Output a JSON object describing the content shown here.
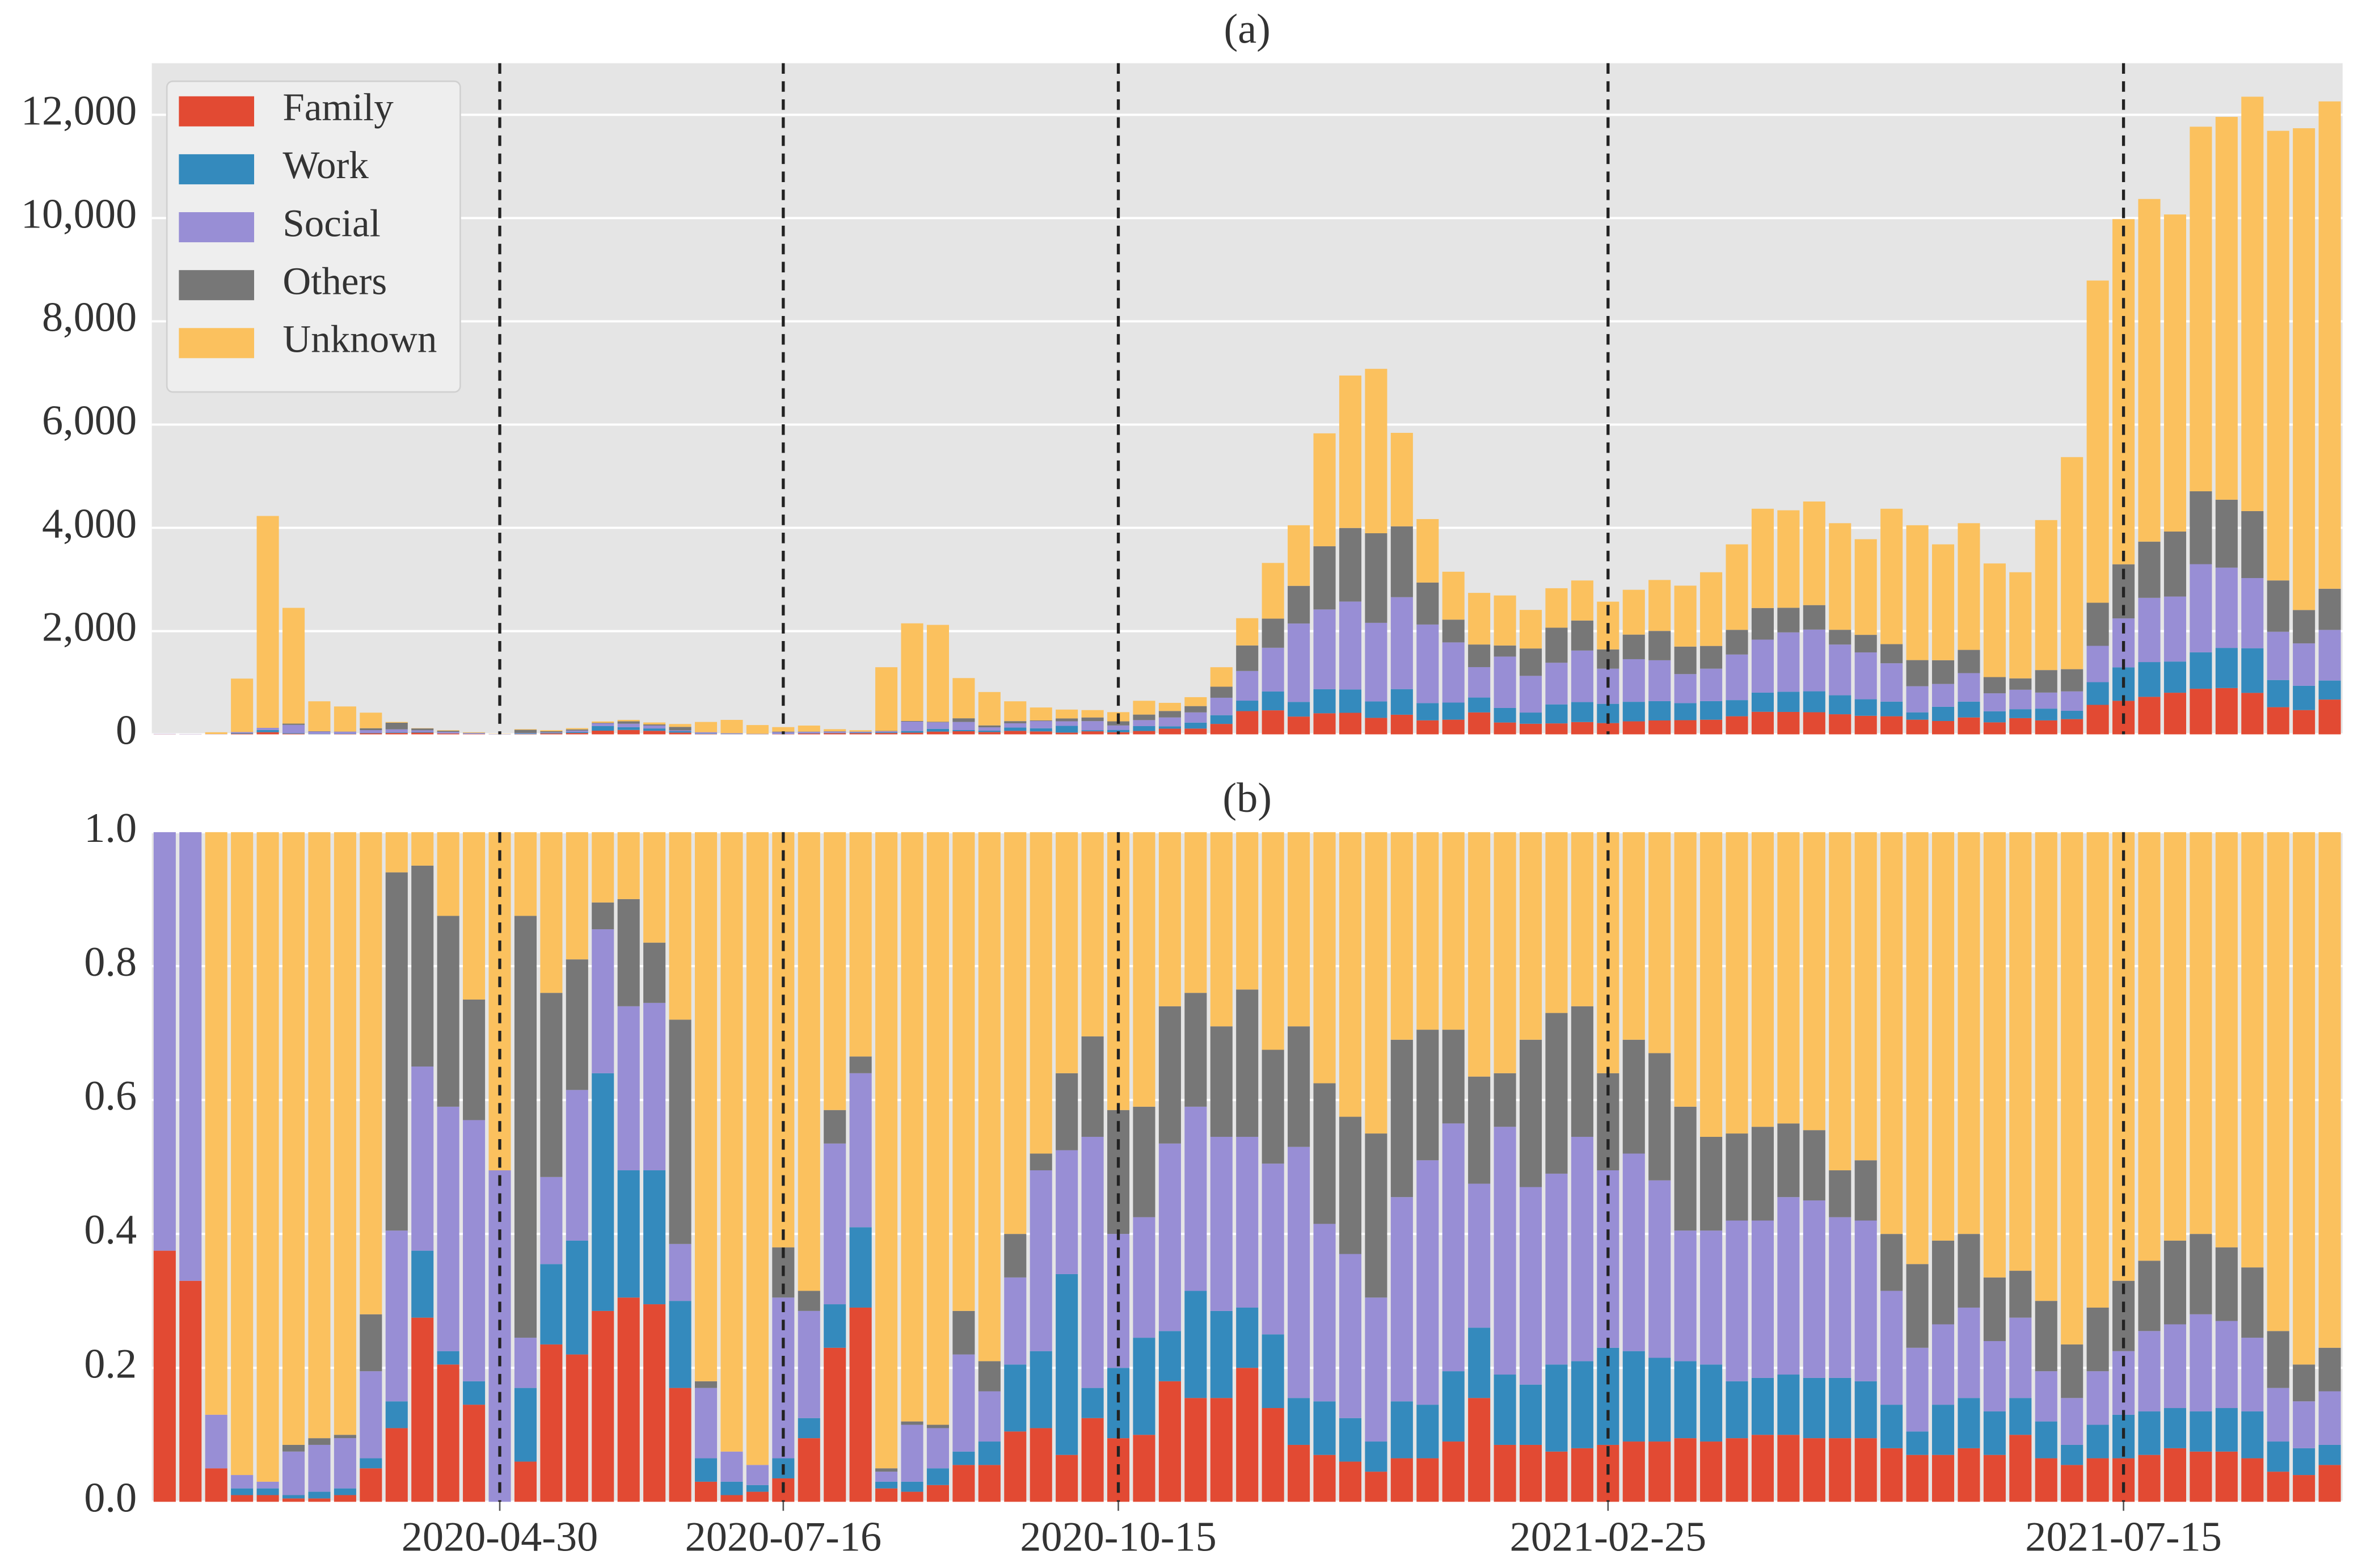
{
  "chart_data": [
    {
      "type": "bar",
      "stacked": true,
      "title": "(a)",
      "legend": "upper left",
      "grid": true,
      "categories": [
        null,
        null,
        null,
        null,
        null,
        null,
        null,
        null,
        null,
        null,
        null,
        null,
        null,
        null,
        null,
        null,
        null,
        null,
        null,
        null,
        null,
        null,
        null,
        null,
        null,
        null,
        null,
        null,
        null,
        null,
        null,
        null,
        null,
        null,
        null,
        null,
        null,
        null,
        null,
        null,
        null,
        null,
        null,
        null,
        null,
        null,
        null,
        null,
        null,
        null,
        null,
        null,
        null,
        null,
        null,
        null,
        null,
        null,
        null,
        null,
        null,
        null,
        null,
        null,
        null,
        null,
        null,
        null,
        null,
        null,
        null,
        null,
        null,
        null,
        null,
        null,
        null,
        null,
        null,
        null,
        null,
        null,
        null,
        null,
        null
      ],
      "reference_lines": [
        13,
        24,
        37,
        56,
        76
      ],
      "ylim": [
        0,
        13000
      ],
      "yticks": [
        0,
        {
          "value": 2000,
          "label": "2,000"
        },
        {
          "value": 4000,
          "label": "4,000"
        },
        {
          "value": 6000,
          "label": "6,000"
        },
        {
          "value": 8000,
          "label": "8,000"
        },
        {
          "value": 10000,
          "label": "10,000"
        },
        {
          "value": 12000,
          "label": "12,000"
        }
      ],
      "series": [
        {
          "name": "Family",
          "color": "#e24a33",
          "values": [
            3,
            2,
            2,
            11,
            42,
            12,
            3,
            5,
            21,
            26,
            33,
            16,
            6,
            0,
            6,
            19,
            26,
            71,
            85,
            68,
            34,
            7,
            3,
            3,
            5,
            16,
            23,
            23,
            26,
            32,
            53,
            60,
            45,
            67,
            57,
            34,
            59,
            41,
            65,
            110,
            112,
            202,
            450,
            465,
            344,
            408,
            417,
            319,
            380,
            271,
            284,
            425,
            229,
            205,
            212,
            238,
            218,
            252,
            269,
            274,
            283,
            350,
            437,
            434,
            428,
            389,
            359,
            350,
            284,
            258,
            327,
            232,
            314,
            270,
            295,
            571,
            649,
            726,
            806,
            883,
            897,
            803,
            526,
            470,
            674
          ]
        },
        {
          "name": "Work",
          "color": "#348abd",
          "values": [
            0,
            0,
            0,
            11,
            42,
            12,
            6,
            5,
            6,
            10,
            12,
            2,
            1,
            0,
            11,
            10,
            20,
            89,
            53,
            46,
            26,
            8,
            6,
            2,
            4,
            5,
            7,
            10,
            13,
            32,
            53,
            22,
            29,
            64,
            60,
            130,
            21,
            45,
            94,
            46,
            115,
            169,
            203,
            365,
            284,
            466,
            452,
            319,
            496,
            334,
            331,
            288,
            282,
            217,
            368,
            387,
            373,
            378,
            374,
            331,
            361,
            313,
            371,
            391,
            406,
            368,
            321,
            284,
            142,
            276,
            307,
            215,
            173,
            228,
            161,
            440,
            649,
            674,
            604,
            706,
            777,
            865,
            526,
            470,
            368
          ]
        },
        {
          "name": "Social",
          "color": "#988ed5",
          "values": [
            5,
            4,
            3,
            22,
            42,
            159,
            45,
            41,
            55,
            61,
            33,
            29,
            16,
            5,
            8,
            10,
            27,
            54,
            69,
            57,
            17,
            25,
            13,
            5,
            34,
            27,
            24,
            18,
            20,
            183,
            127,
            158,
            62,
            83,
            140,
            89,
            176,
            86,
            117,
            171,
            198,
            338,
            574,
            847,
            1519,
            1545,
            1703,
            1522,
            1781,
            1522,
            1166,
            589,
            995,
            711,
            807,
            998,
            681,
            826,
            792,
            562,
            628,
            883,
            1027,
            1150,
            1195,
            982,
            907,
            743,
            506,
            442,
            552,
            348,
            377,
            311,
            376,
            703,
            948,
            1244,
            1259,
            1707,
            1555,
            1359,
            935,
            822,
            981
          ]
        },
        {
          "name": "Others",
          "color": "#777777",
          "values": [
            0,
            0,
            0,
            0,
            0,
            25,
            6,
            3,
            36,
            128,
            36,
            23,
            7,
            0,
            63,
            22,
            23,
            10,
            45,
            21,
            67,
            2,
            0,
            0,
            10,
            5,
            5,
            2,
            7,
            11,
            11,
            71,
            37,
            42,
            13,
            55,
            71,
            80,
            107,
            125,
            122,
            214,
            495,
            564,
            729,
            1224,
            1425,
            1735,
            1372,
            813,
            441,
            438,
            215,
            530,
            679,
            581,
            373,
            476,
            568,
            533,
            440,
            478,
            612,
            477,
            474,
            286,
            340,
            371,
            506,
            460,
            450,
            314,
            220,
            436,
            430,
            835,
            1048,
            1089,
            1259,
            1412,
            1316,
            1297,
            994,
            646,
            797
          ]
        },
        {
          "name": "Unknown",
          "color": "#fbc15e",
          "values": [
            0,
            0,
            35,
            1036,
            4104,
            2242,
            580,
            486,
            302,
            15,
            6,
            10,
            10,
            5,
            12,
            19,
            24,
            26,
            28,
            38,
            56,
            198,
            258,
            170,
            87,
            117,
            41,
            27,
            1234,
            1892,
            1876,
            779,
            647,
            384,
            250,
            172,
            143,
            178,
            267,
            158,
            173,
            377,
            528,
            1079,
            1174,
            2187,
            2953,
            3185,
            1811,
            1230,
            928,
            1000,
            969,
            747,
            764,
            776,
            925,
            868,
            987,
            1180,
            1428,
            1656,
            1923,
            1888,
            2007,
            2065,
            1853,
            2622,
            2612,
            2244,
            2454,
            2201,
            2056,
            2905,
            4108,
            6241,
            6686,
            6637,
            6142,
            7062,
            7415,
            8027,
            8709,
            9332,
            9440
          ]
        }
      ]
    },
    {
      "type": "bar",
      "stacked": true,
      "title": "(b)",
      "legend": false,
      "grid": true,
      "categories": [
        null,
        null,
        null,
        null,
        null,
        null,
        null,
        null,
        null,
        null,
        null,
        null,
        null,
        "2020-04-30",
        null,
        null,
        null,
        null,
        null,
        null,
        null,
        null,
        null,
        null,
        "2020-07-16",
        null,
        null,
        null,
        null,
        null,
        null,
        null,
        null,
        null,
        null,
        null,
        null,
        "2020-10-15",
        null,
        null,
        null,
        null,
        null,
        null,
        null,
        null,
        null,
        null,
        null,
        null,
        null,
        null,
        null,
        null,
        null,
        null,
        "2021-02-25",
        null,
        null,
        null,
        null,
        null,
        null,
        null,
        null,
        null,
        null,
        null,
        null,
        null,
        null,
        null,
        null,
        null,
        null,
        null,
        "2021-07-15",
        null,
        null,
        null,
        null,
        null,
        null,
        null,
        null
      ],
      "reference_lines": [
        13,
        24,
        37,
        56,
        76
      ],
      "ylim": [
        0,
        1
      ],
      "yticks": [
        {
          "value": 0,
          "label": "0.0"
        },
        {
          "value": 0.2,
          "label": "0.2"
        },
        {
          "value": 0.4,
          "label": "0.4"
        },
        {
          "value": 0.6,
          "label": "0.6"
        },
        {
          "value": 0.8,
          "label": "0.8"
        },
        {
          "value": 1,
          "label": "1.0"
        }
      ],
      "series": [
        {
          "color": "#e24a33",
          "values": [
            0.375,
            0.33,
            0.05,
            0.01,
            0.01,
            0.005,
            0.005,
            0.01,
            0.05,
            0.11,
            0.275,
            0.205,
            0.145,
            0,
            0.06,
            0.235,
            0.22,
            0.285,
            0.305,
            0.295,
            0.17,
            0.03,
            0.01,
            0.015,
            0.035,
            0.095,
            0.23,
            0.29,
            0.02,
            0.015,
            0.025,
            0.055,
            0.055,
            0.105,
            0.11,
            0.07,
            0.125,
            0.095,
            0.1,
            0.18,
            0.155,
            0.155,
            0.2,
            0.14,
            0.085,
            0.07,
            0.06,
            0.045,
            0.065,
            0.065,
            0.09,
            0.155,
            0.085,
            0.085,
            0.075,
            0.08,
            0.085,
            0.09,
            0.09,
            0.095,
            0.09,
            0.095,
            0.1,
            0.1,
            0.095,
            0.095,
            0.095,
            0.08,
            0.07,
            0.07,
            0.08,
            0.07,
            0.1,
            0.065,
            0.055,
            0.065,
            0.065,
            0.07,
            0.08,
            0.075,
            0.075,
            0.065,
            0.045,
            0.04,
            0.055
          ]
        },
        {
          "color": "#348abd",
          "values": [
            0,
            0,
            0,
            0.01,
            0.01,
            0.005,
            0.01,
            0.01,
            0.015,
            0.04,
            0.1,
            0.02,
            0.035,
            0,
            0.11,
            0.12,
            0.17,
            0.355,
            0.19,
            0.2,
            0.13,
            0.035,
            0.02,
            0.01,
            0.03,
            0.03,
            0.065,
            0.12,
            0.01,
            0.015,
            0.025,
            0.02,
            0.035,
            0.1,
            0.115,
            0.27,
            0.045,
            0.105,
            0.145,
            0.075,
            0.16,
            0.13,
            0.09,
            0.11,
            0.07,
            0.08,
            0.065,
            0.045,
            0.085,
            0.08,
            0.105,
            0.105,
            0.105,
            0.09,
            0.13,
            0.13,
            0.145,
            0.135,
            0.125,
            0.115,
            0.115,
            0.085,
            0.085,
            0.09,
            0.09,
            0.09,
            0.085,
            0.065,
            0.035,
            0.075,
            0.075,
            0.065,
            0.055,
            0.055,
            0.03,
            0.05,
            0.065,
            0.065,
            0.06,
            0.06,
            0.065,
            0.07,
            0.045,
            0.04,
            0.03
          ]
        },
        {
          "color": "#988ed5",
          "values": [
            0.625,
            0.67,
            0.08,
            0.02,
            0.01,
            0.065,
            0.07,
            0.075,
            0.13,
            0.255,
            0.275,
            0.365,
            0.39,
            0.495,
            0.075,
            0.13,
            0.225,
            0.215,
            0.245,
            0.25,
            0.085,
            0.105,
            0.045,
            0.03,
            0.24,
            0.16,
            0.24,
            0.23,
            0.015,
            0.085,
            0.06,
            0.145,
            0.075,
            0.13,
            0.27,
            0.185,
            0.375,
            0.2,
            0.18,
            0.28,
            0.275,
            0.26,
            0.255,
            0.255,
            0.375,
            0.265,
            0.245,
            0.215,
            0.305,
            0.365,
            0.37,
            0.215,
            0.37,
            0.295,
            0.285,
            0.335,
            0.265,
            0.295,
            0.265,
            0.195,
            0.2,
            0.24,
            0.235,
            0.265,
            0.265,
            0.24,
            0.24,
            0.17,
            0.125,
            0.12,
            0.135,
            0.105,
            0.12,
            0.075,
            0.07,
            0.08,
            0.095,
            0.12,
            0.125,
            0.145,
            0.13,
            0.11,
            0.08,
            0.07,
            0.08
          ]
        },
        {
          "color": "#777777",
          "values": [
            0,
            0,
            0,
            0,
            0,
            0.01,
            0.01,
            0.005,
            0.085,
            0.535,
            0.3,
            0.285,
            0.18,
            0,
            0.63,
            0.275,
            0.195,
            0.04,
            0.16,
            0.09,
            0.335,
            0.01,
            0,
            0,
            0.075,
            0.03,
            0.05,
            0.025,
            0.005,
            0.005,
            0.005,
            0.065,
            0.045,
            0.065,
            0.025,
            0.115,
            0.15,
            0.185,
            0.165,
            0.205,
            0.17,
            0.165,
            0.22,
            0.17,
            0.18,
            0.21,
            0.205,
            0.245,
            0.235,
            0.195,
            0.14,
            0.16,
            0.08,
            0.22,
            0.24,
            0.195,
            0.145,
            0.17,
            0.19,
            0.185,
            0.14,
            0.13,
            0.14,
            0.11,
            0.105,
            0.07,
            0.09,
            0.085,
            0.125,
            0.125,
            0.11,
            0.095,
            0.07,
            0.105,
            0.08,
            0.095,
            0.105,
            0.105,
            0.125,
            0.12,
            0.11,
            0.105,
            0.085,
            0.055,
            0.065
          ]
        },
        {
          "color": "#fbc15e",
          "values": [
            0,
            0,
            0.87,
            0.96,
            0.97,
            0.915,
            0.905,
            0.9,
            0.72,
            0.06,
            0.05,
            0.125,
            0.25,
            0.505,
            0.125,
            0.24,
            0.19,
            0.105,
            0.1,
            0.165,
            0.28,
            0.82,
            0.925,
            0.945,
            0.62,
            0.685,
            0.415,
            0.335,
            0.95,
            0.88,
            0.885,
            0.715,
            0.79,
            0.6,
            0.48,
            0.36,
            0.305,
            0.415,
            0.41,
            0.26,
            0.24,
            0.29,
            0.235,
            0.325,
            0.29,
            0.375,
            0.425,
            0.45,
            0.31,
            0.295,
            0.295,
            0.365,
            0.36,
            0.31,
            0.27,
            0.26,
            0.36,
            0.31,
            0.33,
            0.41,
            0.455,
            0.45,
            0.44,
            0.435,
            0.445,
            0.505,
            0.49,
            0.6,
            0.645,
            0.61,
            0.6,
            0.665,
            0.655,
            0.7,
            0.765,
            0.71,
            0.67,
            0.64,
            0.61,
            0.6,
            0.62,
            0.65,
            0.745,
            0.795,
            0.77
          ]
        }
      ]
    }
  ]
}
